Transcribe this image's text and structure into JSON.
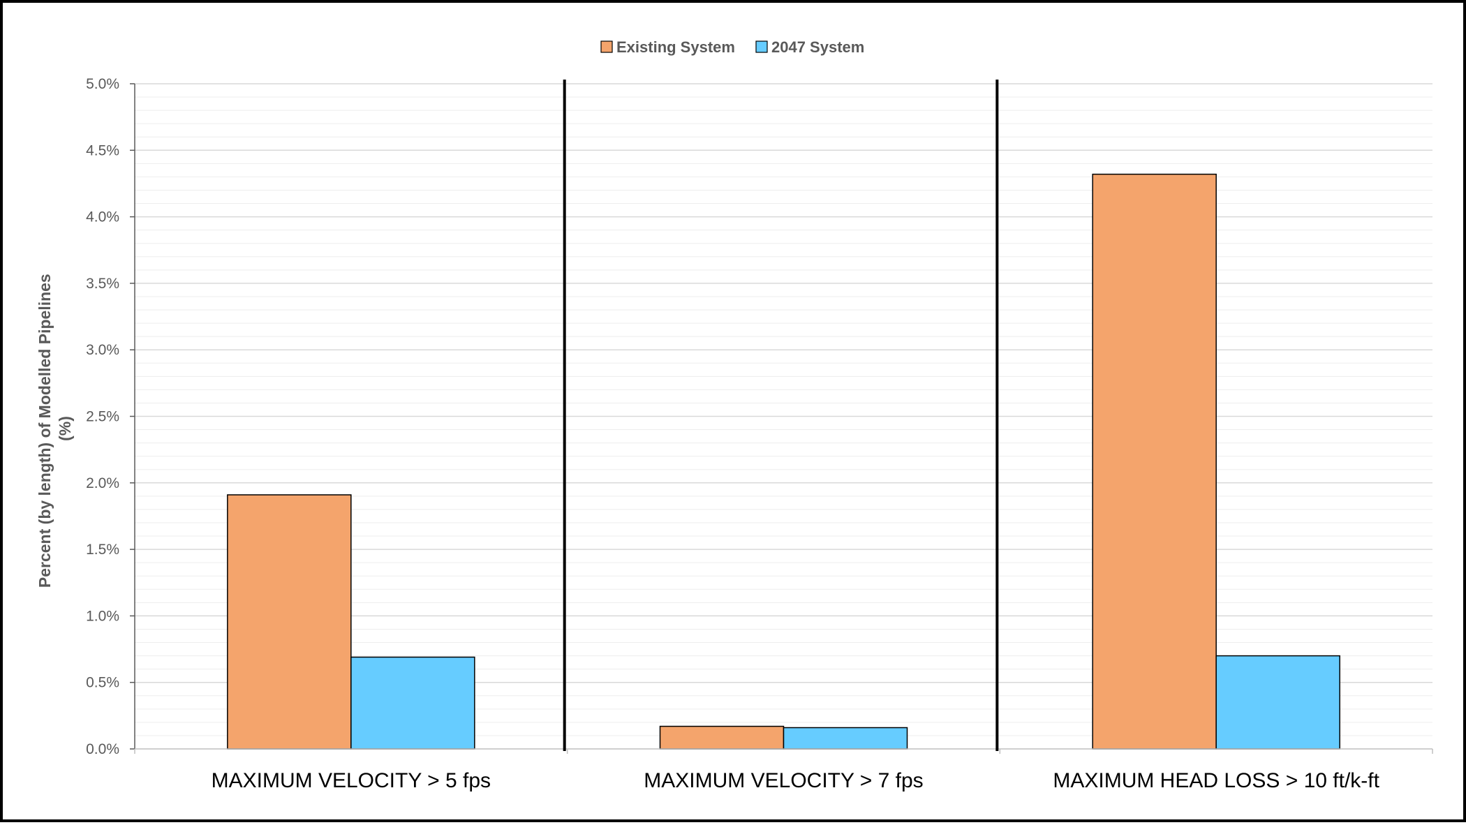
{
  "chart_data": {
    "type": "bar",
    "title": "",
    "xlabel": "",
    "ylabel_lines": [
      "Percent (by length) of Modelled Pipelines",
      "(%)"
    ],
    "categories": [
      "MAXIMUM VELOCITY > 5 fps",
      "MAXIMUM VELOCITY > 7 fps",
      "MAXIMUM HEAD LOSS > 10 ft/k-ft"
    ],
    "series": [
      {
        "name": "Existing System",
        "color": "#F4A46C",
        "values": [
          1.91,
          0.17,
          4.32
        ]
      },
      {
        "name": "2047 System",
        "color": "#66CCFF",
        "values": [
          0.69,
          0.16,
          0.7
        ]
      }
    ],
    "ylim": [
      0,
      5.0
    ],
    "yticks": [
      0.0,
      0.5,
      1.0,
      1.5,
      2.0,
      2.5,
      3.0,
      3.5,
      4.0,
      4.5,
      5.0
    ],
    "ytick_labels": [
      "0.0%",
      "0.5%",
      "1.0%",
      "1.5%",
      "2.0%",
      "2.5%",
      "3.0%",
      "3.5%",
      "4.0%",
      "4.5%",
      "5.0%"
    ],
    "minor_gridlines": true,
    "category_separators": true,
    "legend_position": "top-center"
  }
}
